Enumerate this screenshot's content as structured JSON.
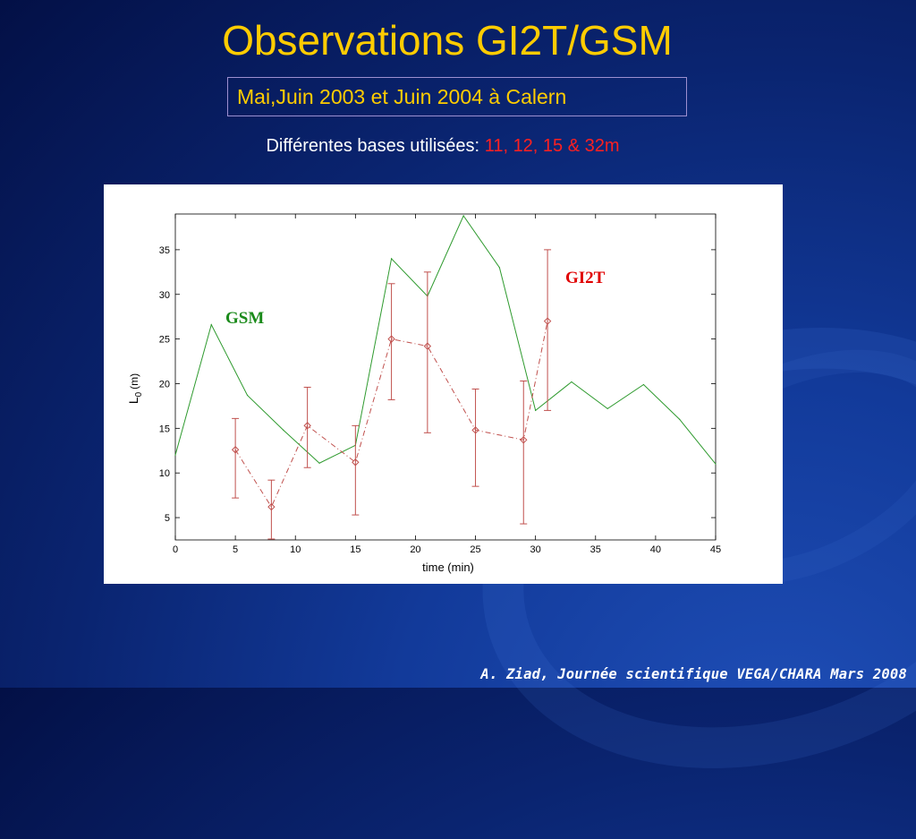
{
  "title": "Observations GI2T/GSM",
  "subtitle": "Mai,Juin 2003 et Juin 2004 à Calern",
  "bases": {
    "prefix": "Différentes bases utilisées:",
    "values": "11, 12, 15 & 32m"
  },
  "footer": "A. Ziad, Journée scientifique VEGA/CHARA Mars 2008",
  "colors": {
    "title": "#ffcc00",
    "gsm": "#2e9a2e",
    "gi2t": "#c0504d",
    "gi2t_label": "#e00000",
    "gsm_label": "#1a8a1a"
  },
  "chart_data": {
    "type": "line",
    "xlabel": "time (min)",
    "ylabel": "L",
    "ylabel_sub": "0",
    "ylabel_unit": "(m)",
    "xlim": [
      0,
      45
    ],
    "ylim": [
      2.5,
      39
    ],
    "xticks": [
      0,
      5,
      10,
      15,
      20,
      25,
      30,
      35,
      40,
      45
    ],
    "yticks": [
      5,
      10,
      15,
      20,
      25,
      30,
      35
    ],
    "grid": false,
    "series": [
      {
        "name": "GSM",
        "style": "solid",
        "x": [
          0,
          3,
          6,
          9,
          12,
          15,
          18,
          21,
          24,
          27,
          30,
          33,
          36,
          39,
          42,
          45
        ],
        "y": [
          12,
          26.6,
          18.7,
          14.8,
          11.1,
          13.1,
          34,
          29.8,
          38.8,
          33,
          17,
          20.2,
          17.2,
          19.9,
          16,
          11
        ]
      },
      {
        "name": "GI2T",
        "style": "dashed",
        "x": [
          5,
          8,
          11,
          15,
          18,
          21,
          25,
          29,
          31
        ],
        "y": [
          12.6,
          6.2,
          15.3,
          11.2,
          25,
          24.2,
          14.8,
          13.7,
          27
        ],
        "err_low": [
          7.2,
          2.6,
          10.6,
          5.3,
          18.2,
          14.5,
          8.5,
          4.3,
          17
        ],
        "err_high": [
          16.1,
          9.2,
          19.6,
          15.3,
          31.2,
          32.5,
          19.4,
          20.3,
          35
        ]
      }
    ]
  }
}
